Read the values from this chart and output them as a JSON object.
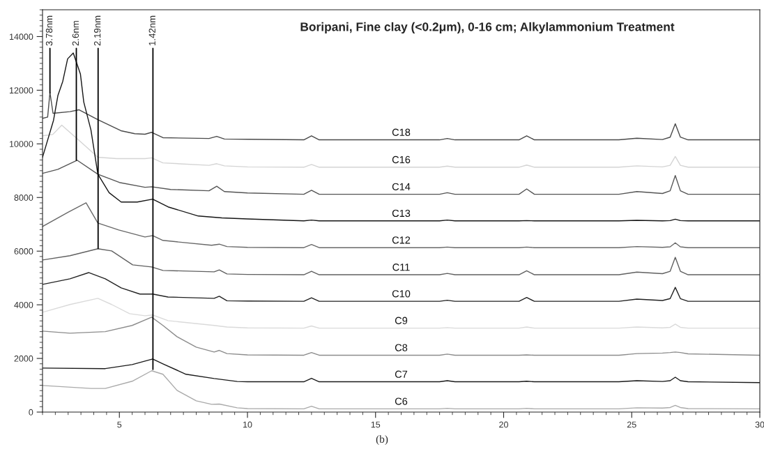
{
  "chart_data": {
    "type": "line",
    "title": "Boripani, Fine clay (<0.2μm), 0-16 cm; Alkylammonium Treatment",
    "xlim": [
      2,
      30
    ],
    "xticks": [
      5,
      10,
      15,
      20,
      25,
      30
    ],
    "ylim": [
      0,
      15000
    ],
    "yticks": [
      0,
      2000,
      4000,
      6000,
      8000,
      10000,
      12000,
      14000
    ],
    "grid": false,
    "marker": "none",
    "line_style": "solid",
    "annotations": [
      {
        "text": "3.78nm",
        "x": 2.29,
        "y": 11900
      },
      {
        "text": "2.6nm",
        "x": 3.32,
        "y": 9390
      },
      {
        "text": "2.19nm",
        "x": 4.17,
        "y": 6100
      },
      {
        "text": "1.42nm",
        "x": 6.31,
        "y": 1590
      },
      "(b)"
    ],
    "series": [
      {
        "name": "C18",
        "color": "#4a4a4a",
        "x": [
          2,
          2.2,
          2.29,
          2.41,
          3.07,
          3.42,
          4.16,
          5.06,
          5.6,
          6.0,
          6.26,
          6.7,
          8.5,
          8.8,
          9.1,
          10,
          12.2,
          12.5,
          12.8,
          17.5,
          17.8,
          18.1,
          20.6,
          20.9,
          21.2,
          24.5,
          25.2,
          26.2,
          26.5,
          26.7,
          26.9,
          27.2,
          30
        ],
        "values": [
          10950,
          11000,
          11920,
          11140,
          11200,
          11270,
          10900,
          10490,
          10380,
          10360,
          10430,
          10230,
          10200,
          10280,
          10180,
          10170,
          10150,
          10300,
          10150,
          10150,
          10200,
          10150,
          10150,
          10300,
          10150,
          10150,
          10210,
          10160,
          10250,
          10750,
          10250,
          10150,
          10150
        ]
      },
      {
        "name": "C16",
        "color": "#d4d4d4",
        "x": [
          2,
          2.4,
          2.75,
          3.53,
          4.16,
          4.9,
          6.0,
          6.26,
          6.7,
          8.5,
          8.8,
          9.1,
          10,
          12.2,
          12.5,
          12.8,
          17.5,
          17.8,
          18.1,
          20.6,
          20.9,
          21.2,
          24.5,
          25.2,
          26.2,
          26.5,
          26.7,
          26.9,
          27.2,
          30
        ],
        "values": [
          10300,
          10350,
          10700,
          10040,
          9500,
          9450,
          9450,
          9480,
          9290,
          9200,
          9260,
          9180,
          9140,
          9130,
          9230,
          9130,
          9130,
          9170,
          9130,
          9130,
          9210,
          9130,
          9130,
          9180,
          9140,
          9200,
          9530,
          9200,
          9130,
          9130
        ]
      },
      {
        "name": "C14",
        "color": "#555555",
        "x": [
          2,
          2.6,
          3.35,
          4.16,
          5.0,
          6.0,
          6.26,
          7.0,
          8.5,
          8.8,
          9.1,
          10,
          12.2,
          12.5,
          12.8,
          17.5,
          17.8,
          18.1,
          20.6,
          20.9,
          21.2,
          24.5,
          25.2,
          26.2,
          26.5,
          26.7,
          26.9,
          27.2,
          30
        ],
        "values": [
          8900,
          9050,
          9390,
          8870,
          8560,
          8380,
          8400,
          8300,
          8250,
          8420,
          8220,
          8170,
          8120,
          8270,
          8120,
          8120,
          8180,
          8120,
          8120,
          8320,
          8120,
          8120,
          8220,
          8150,
          8250,
          8820,
          8250,
          8120,
          8120
        ]
      },
      {
        "name": "C13",
        "color": "#151515",
        "x": [
          2,
          2.43,
          2.6,
          2.79,
          2.98,
          3.2,
          3.48,
          3.61,
          3.89,
          4.16,
          4.6,
          5.07,
          5.7,
          6.3,
          6.9,
          8.08,
          9.0,
          10,
          12.2,
          12.5,
          12.8,
          17.5,
          17.8,
          18.1,
          20.6,
          20.9,
          21.2,
          24.5,
          25.2,
          26.2,
          26.5,
          26.7,
          26.9,
          27.2,
          30
        ],
        "values": [
          9500,
          10880,
          11800,
          12330,
          13170,
          13390,
          12600,
          11560,
          10520,
          8870,
          8180,
          7830,
          7830,
          7940,
          7650,
          7310,
          7240,
          7200,
          7130,
          7160,
          7130,
          7130,
          7160,
          7130,
          7130,
          7140,
          7130,
          7130,
          7150,
          7130,
          7140,
          7190,
          7140,
          7130,
          7130
        ]
      },
      {
        "name": "C12",
        "color": "#686868",
        "x": [
          2,
          3.0,
          3.7,
          4.16,
          4.98,
          6.0,
          6.3,
          6.7,
          8.6,
          8.9,
          9.2,
          10,
          12.2,
          12.5,
          12.8,
          17.5,
          17.8,
          18.1,
          20.6,
          20.9,
          21.2,
          24.5,
          25.2,
          26.2,
          26.5,
          26.7,
          26.9,
          27.2,
          30
        ],
        "values": [
          6920,
          7450,
          7800,
          7050,
          6790,
          6530,
          6580,
          6400,
          6220,
          6260,
          6170,
          6140,
          6130,
          6250,
          6130,
          6130,
          6150,
          6130,
          6130,
          6150,
          6130,
          6130,
          6170,
          6140,
          6160,
          6310,
          6160,
          6130,
          6130
        ]
      },
      {
        "name": "C11",
        "color": "#606060",
        "x": [
          2,
          3.07,
          4.16,
          4.7,
          5.52,
          6.26,
          6.7,
          8.7,
          8.9,
          9.2,
          10,
          12.2,
          12.5,
          12.8,
          17.5,
          17.8,
          18.1,
          20.6,
          20.9,
          21.2,
          24.5,
          25.2,
          26.2,
          26.5,
          26.7,
          26.9,
          27.2,
          30
        ],
        "values": [
          5670,
          5830,
          6090,
          6010,
          5490,
          5410,
          5280,
          5230,
          5300,
          5150,
          5130,
          5120,
          5250,
          5120,
          5120,
          5170,
          5120,
          5120,
          5270,
          5120,
          5120,
          5220,
          5160,
          5250,
          5770,
          5250,
          5120,
          5120
        ]
      },
      {
        "name": "C10",
        "color": "#222222",
        "x": [
          2,
          3.07,
          3.8,
          4.45,
          5.07,
          5.8,
          6.3,
          6.9,
          8.7,
          8.9,
          9.2,
          10,
          12.2,
          12.5,
          12.8,
          17.5,
          17.8,
          18.1,
          20.6,
          20.9,
          21.2,
          24.5,
          25.2,
          26.2,
          26.5,
          26.7,
          26.9,
          27.2,
          30
        ],
        "values": [
          4760,
          4970,
          5200,
          4970,
          4630,
          4400,
          4400,
          4290,
          4240,
          4320,
          4150,
          4140,
          4130,
          4260,
          4130,
          4130,
          4170,
          4130,
          4130,
          4270,
          4130,
          4130,
          4210,
          4160,
          4230,
          4650,
          4230,
          4130,
          4130
        ]
      },
      {
        "name": "C9",
        "color": "#dadada",
        "x": [
          2,
          3.07,
          4.16,
          4.7,
          5.4,
          6.0,
          6.3,
          6.9,
          8.7,
          9.2,
          10,
          12.2,
          12.5,
          12.8,
          17.5,
          17.8,
          18.1,
          20.6,
          20.9,
          21.2,
          24.5,
          25.2,
          26.2,
          26.5,
          26.7,
          26.9,
          27.2,
          30
        ],
        "values": [
          3720,
          4010,
          4240,
          4010,
          3670,
          3590,
          3620,
          3410,
          3230,
          3170,
          3140,
          3130,
          3210,
          3130,
          3130,
          3150,
          3130,
          3130,
          3170,
          3130,
          3130,
          3170,
          3140,
          3160,
          3280,
          3160,
          3130,
          3130
        ]
      },
      {
        "name": "C8",
        "color": "#8c8c8c",
        "x": [
          2,
          3.07,
          4.45,
          5.5,
          6.26,
          6.7,
          7.25,
          8.0,
          8.7,
          8.9,
          9.2,
          10,
          12.2,
          12.5,
          12.8,
          17.5,
          17.8,
          18.1,
          20.6,
          20.9,
          21.2,
          24.5,
          25.2,
          26.2,
          26.5,
          26.7,
          26.9,
          27.2,
          30
        ],
        "values": [
          3020,
          2940,
          3000,
          3230,
          3540,
          3230,
          2810,
          2420,
          2240,
          2300,
          2180,
          2130,
          2120,
          2220,
          2120,
          2120,
          2160,
          2120,
          2120,
          2130,
          2120,
          2120,
          2180,
          2200,
          2220,
          2240,
          2220,
          2170,
          2120
        ]
      },
      {
        "name": "C7",
        "color": "#1a1a1a",
        "x": [
          2,
          4.45,
          5.5,
          6.3,
          6.7,
          7.6,
          8.7,
          9.6,
          10,
          12.2,
          12.5,
          12.8,
          17.5,
          17.8,
          18.1,
          20.6,
          20.9,
          21.2,
          24.5,
          25.2,
          26.2,
          26.5,
          26.7,
          26.9,
          27.2,
          30
        ],
        "values": [
          1640,
          1620,
          1770,
          1980,
          1800,
          1410,
          1250,
          1140,
          1130,
          1130,
          1260,
          1130,
          1130,
          1170,
          1130,
          1130,
          1150,
          1130,
          1130,
          1170,
          1140,
          1170,
          1300,
          1170,
          1130,
          1100
        ]
      },
      {
        "name": "C6",
        "color": "#aaaaaa",
        "x": [
          2,
          3.9,
          4.45,
          5.5,
          6.26,
          6.7,
          7.25,
          8.0,
          8.6,
          8.9,
          9.6,
          10,
          12.2,
          12.5,
          12.8,
          17.5,
          17.8,
          18.1,
          20.6,
          20.9,
          21.2,
          24.5,
          25.2,
          26.2,
          26.5,
          26.7,
          26.9,
          27.2,
          30
        ],
        "values": [
          990,
          880,
          880,
          1150,
          1540,
          1410,
          810,
          420,
          290,
          300,
          160,
          130,
          120,
          220,
          120,
          120,
          140,
          120,
          120,
          140,
          120,
          120,
          160,
          150,
          170,
          250,
          170,
          130,
          120
        ]
      }
    ]
  }
}
